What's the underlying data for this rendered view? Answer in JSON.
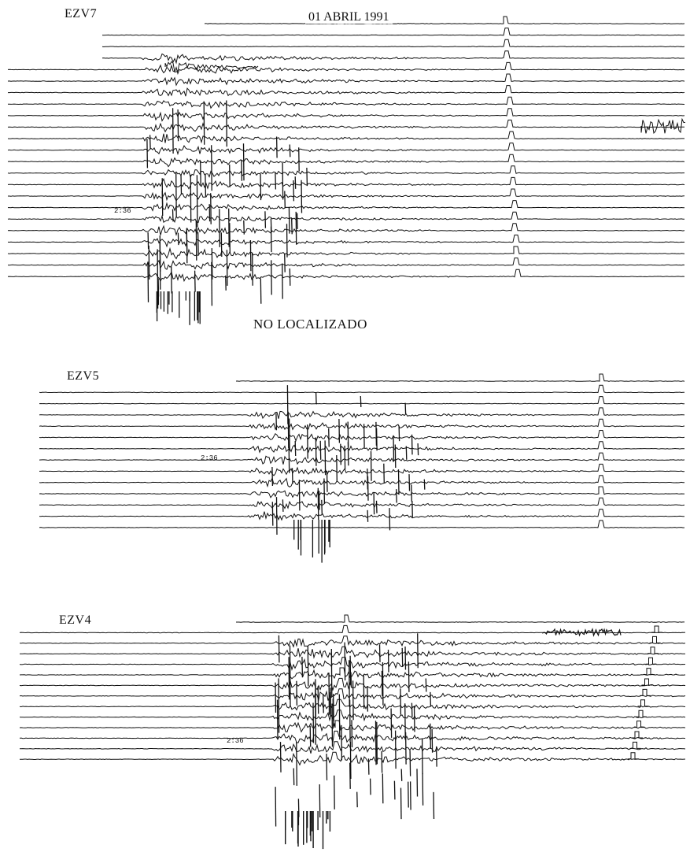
{
  "header": {
    "date": "01 ABRIL 1991"
  },
  "status_text": "NO LOCALIZADO",
  "colors": {
    "ink": "#111111",
    "paper": "#ffffff"
  },
  "panels": [
    {
      "station": "EZV7",
      "time_mark": "2:36"
    },
    {
      "station": "EZV5",
      "time_mark": "2:36"
    },
    {
      "station": "EZV4",
      "time_mark": "2:36"
    }
  ]
}
